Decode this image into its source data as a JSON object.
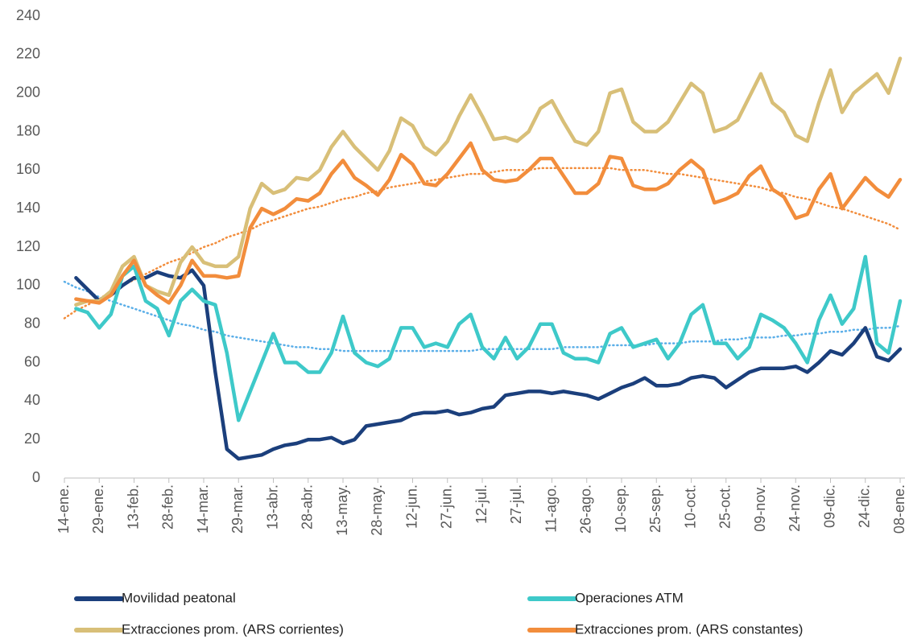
{
  "chart_data": {
    "type": "line",
    "categories": [
      "14-ene.",
      null,
      null,
      "29-ene.",
      null,
      null,
      "13-feb.",
      null,
      null,
      "28-feb.",
      null,
      null,
      "14-mar.",
      null,
      null,
      "29-mar.",
      null,
      null,
      "13-abr.",
      null,
      null,
      "28-abr.",
      null,
      null,
      "13-may.",
      null,
      null,
      "28-may.",
      null,
      null,
      "12-jun.",
      null,
      null,
      "27-jun.",
      null,
      null,
      "12-jul.",
      null,
      null,
      "27-jul.",
      null,
      null,
      "11-ago.",
      null,
      null,
      "26-ago.",
      null,
      null,
      "10-sep.",
      null,
      null,
      "25-sep.",
      null,
      null,
      "10-oct.",
      null,
      null,
      "25-oct.",
      null,
      null,
      "09-nov.",
      null,
      null,
      "24-nov.",
      null,
      null,
      "09-dic.",
      null,
      null,
      "24-dic.",
      null,
      null,
      "08-ene."
    ],
    "series": [
      {
        "name": "Movilidad peatonal",
        "color": "#1b3f7c",
        "values": [
          null,
          104,
          98,
          92,
          95,
          100,
          104,
          104,
          107,
          105,
          104,
          108,
          100,
          55,
          15,
          10,
          11,
          12,
          15,
          17,
          18,
          20,
          20,
          21,
          18,
          20,
          27,
          28,
          29,
          30,
          33,
          34,
          34,
          35,
          33,
          34,
          36,
          37,
          43,
          44,
          45,
          45,
          44,
          45,
          44,
          43,
          41,
          44,
          47,
          49,
          52,
          48,
          48,
          49,
          52,
          53,
          52,
          47,
          51,
          55,
          57,
          57,
          57,
          58,
          55,
          60,
          66,
          64,
          70,
          78,
          63,
          61,
          67
        ]
      },
      {
        "name": "Operaciones ATM",
        "color": "#3ec9c9",
        "values": [
          null,
          88,
          86,
          78,
          85,
          105,
          110,
          92,
          88,
          74,
          92,
          98,
          92,
          90,
          65,
          30,
          45,
          60,
          75,
          60,
          60,
          55,
          55,
          65,
          84,
          65,
          60,
          58,
          62,
          78,
          78,
          68,
          70,
          68,
          80,
          85,
          68,
          62,
          73,
          62,
          68,
          80,
          80,
          65,
          62,
          62,
          60,
          75,
          78,
          68,
          70,
          72,
          62,
          70,
          85,
          90,
          70,
          70,
          62,
          68,
          85,
          82,
          78,
          70,
          60,
          82,
          95,
          80,
          88,
          115,
          70,
          65,
          92
        ]
      },
      {
        "name": "Extracciones prom. (ARS corrientes)",
        "color": "#d8bf78",
        "values": [
          null,
          90,
          92,
          92,
          97,
          110,
          115,
          100,
          97,
          95,
          112,
          120,
          112,
          110,
          110,
          115,
          140,
          153,
          148,
          150,
          156,
          155,
          160,
          172,
          180,
          172,
          166,
          160,
          170,
          187,
          183,
          172,
          168,
          175,
          188,
          199,
          188,
          176,
          177,
          175,
          180,
          192,
          196,
          185,
          175,
          173,
          180,
          200,
          202,
          185,
          180,
          180,
          185,
          195,
          205,
          200,
          180,
          182,
          186,
          198,
          210,
          195,
          190,
          178,
          175,
          195,
          212,
          190,
          200,
          205,
          210,
          200,
          218
        ]
      },
      {
        "name": "Extracciones prom. (ARS constantes)",
        "color": "#f28d3c",
        "values": [
          null,
          93,
          92,
          91,
          95,
          105,
          113,
          100,
          95,
          91,
          100,
          113,
          105,
          105,
          104,
          105,
          130,
          140,
          137,
          140,
          145,
          144,
          148,
          158,
          165,
          156,
          152,
          147,
          155,
          168,
          163,
          153,
          152,
          158,
          166,
          174,
          160,
          155,
          154,
          155,
          160,
          166,
          166,
          157,
          148,
          148,
          153,
          167,
          166,
          152,
          150,
          150,
          153,
          160,
          165,
          160,
          143,
          145,
          148,
          157,
          162,
          150,
          146,
          135,
          137,
          150,
          158,
          140,
          148,
          156,
          150,
          146,
          155
        ]
      },
      {
        "color": "#f28d3c",
        "dash": "dotted",
        "values": [
          83,
          87,
          90,
          93,
          97,
          100,
          103,
          106,
          109,
          112,
          114,
          117,
          120,
          122,
          125,
          127,
          129,
          132,
          134,
          136,
          138,
          140,
          141,
          143,
          145,
          146,
          148,
          149,
          151,
          152,
          153,
          154,
          155,
          156,
          157,
          158,
          158,
          159,
          160,
          160,
          160,
          161,
          161,
          161,
          161,
          161,
          161,
          161,
          160,
          160,
          160,
          159,
          158,
          158,
          157,
          156,
          155,
          154,
          153,
          152,
          151,
          149,
          148,
          146,
          145,
          143,
          141,
          140,
          138,
          136,
          134,
          132,
          129
        ]
      },
      {
        "color": "#5aaee8",
        "dash": "dotted",
        "values": [
          102,
          99,
          97,
          94,
          92,
          90,
          88,
          86,
          84,
          82,
          80,
          79,
          77,
          76,
          74,
          73,
          72,
          71,
          70,
          69,
          68,
          68,
          67,
          67,
          66,
          66,
          66,
          66,
          66,
          66,
          66,
          66,
          66,
          66,
          66,
          66,
          67,
          67,
          67,
          67,
          67,
          67,
          67,
          68,
          68,
          68,
          68,
          69,
          69,
          69,
          69,
          70,
          70,
          70,
          71,
          71,
          71,
          72,
          72,
          73,
          73,
          73,
          74,
          74,
          75,
          75,
          76,
          76,
          77,
          77,
          78,
          78,
          79
        ]
      }
    ],
    "ylim": [
      0,
      240
    ],
    "yticks": [
      0,
      20,
      40,
      60,
      80,
      100,
      120,
      140,
      160,
      180,
      200,
      220,
      240
    ],
    "grid": false
  }
}
